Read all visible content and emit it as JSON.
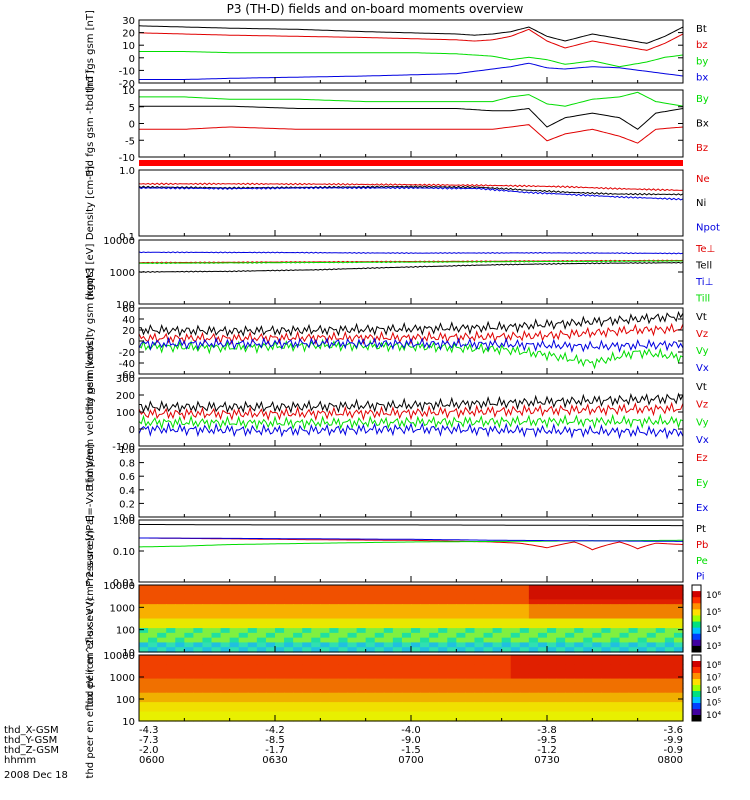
{
  "title": "P3 (TH-D) fields and on-board moments overview",
  "date": "2008 Dec 18",
  "colors": {
    "black": "#000000",
    "red": "#e00000",
    "green": "#00dd00",
    "blue": "#0000e0",
    "bar": "#ff0000"
  },
  "chart_data": [
    {
      "id": "fgs",
      "type": "line",
      "ylabel": "thd fgs gsm [nT]",
      "yticks": [
        "30",
        "20",
        "10",
        "0",
        "-10",
        "-20"
      ],
      "ylim": [
        -22,
        32
      ],
      "series": [
        {
          "name": "Bt",
          "color": "black",
          "x": [
            0,
            10,
            20,
            35,
            50,
            60,
            70,
            74,
            78,
            82,
            86,
            90,
            94,
            100,
            106,
            112,
            116,
            120
          ],
          "y": [
            27,
            26,
            25,
            24,
            22,
            21,
            20,
            19,
            20,
            22,
            26,
            18,
            14,
            20,
            16,
            12,
            18,
            26
          ]
        },
        {
          "name": "bz",
          "color": "red",
          "x": [
            0,
            10,
            20,
            35,
            50,
            60,
            70,
            74,
            78,
            82,
            86,
            90,
            94,
            100,
            106,
            112,
            116,
            120
          ],
          "y": [
            21,
            20,
            19,
            18,
            17,
            16,
            15,
            14,
            15,
            18,
            24,
            14,
            8,
            14,
            10,
            6,
            12,
            20
          ]
        },
        {
          "name": "by",
          "color": "green",
          "x": [
            0,
            10,
            20,
            35,
            50,
            60,
            70,
            74,
            78,
            82,
            86,
            90,
            94,
            100,
            106,
            112,
            116,
            120
          ],
          "y": [
            5,
            5,
            4,
            4,
            4,
            4,
            3,
            2,
            1,
            -2,
            0,
            -2,
            -6,
            -3,
            -8,
            -4,
            0,
            2
          ]
        },
        {
          "name": "bx",
          "color": "blue",
          "x": [
            0,
            10,
            20,
            35,
            50,
            60,
            70,
            74,
            78,
            82,
            86,
            90,
            94,
            100,
            106,
            112,
            116,
            120
          ],
          "y": [
            -19,
            -19,
            -18,
            -17,
            -16,
            -15,
            -14,
            -12,
            -10,
            -8,
            -5,
            -9,
            -10,
            -8,
            -9,
            -12,
            -14,
            -16
          ]
        }
      ]
    },
    {
      "id": "fgs_tbd",
      "type": "line",
      "ylabel": "thd fgs gsm -tbd [nT]",
      "yticks": [
        "10",
        "5",
        "0",
        "-5",
        "-10"
      ],
      "ylim": [
        -14,
        15
      ],
      "series": [
        {
          "name": "By",
          "color": "green",
          "x": [
            0,
            10,
            20,
            35,
            50,
            60,
            70,
            78,
            82,
            86,
            90,
            94,
            100,
            106,
            110,
            114,
            120
          ],
          "y": [
            12,
            12,
            11,
            11,
            10,
            10,
            10,
            10,
            12,
            13,
            9,
            8,
            11,
            12,
            14,
            10,
            8
          ]
        },
        {
          "name": "Bx",
          "color": "black",
          "x": [
            0,
            10,
            20,
            35,
            50,
            60,
            70,
            78,
            82,
            86,
            90,
            94,
            100,
            106,
            110,
            114,
            120
          ],
          "y": [
            8,
            8,
            8,
            7,
            7,
            7,
            7,
            6,
            6,
            7,
            -1,
            3,
            5,
            3,
            -2,
            5,
            7
          ]
        },
        {
          "name": "Bz",
          "color": "red",
          "x": [
            0,
            10,
            20,
            35,
            50,
            60,
            70,
            78,
            82,
            86,
            90,
            94,
            100,
            106,
            110,
            114,
            120
          ],
          "y": [
            -2,
            -2,
            -1,
            -2,
            -2,
            -2,
            -2,
            -2,
            -1,
            0,
            -7,
            -4,
            -2,
            -5,
            -8,
            -2,
            -1
          ]
        }
      ]
    },
    {
      "id": "density",
      "type": "line",
      "ylabel": "Density [cm-3]",
      "log": true,
      "yticks": [
        "1.0",
        "0.1"
      ],
      "ylim": [
        0.1,
        1.5
      ],
      "series": [
        {
          "name": "Ne",
          "color": "red",
          "x": [
            0,
            20,
            40,
            60,
            75,
            85,
            95,
            105,
            120
          ],
          "y": [
            0.85,
            0.85,
            0.84,
            0.82,
            0.8,
            0.78,
            0.75,
            0.7,
            0.65
          ]
        },
        {
          "name": "Ni",
          "color": "black",
          "x": [
            0,
            20,
            40,
            60,
            75,
            85,
            95,
            105,
            120
          ],
          "y": [
            0.75,
            0.72,
            0.74,
            0.76,
            0.74,
            0.66,
            0.6,
            0.56,
            0.55
          ]
        },
        {
          "name": "Npot",
          "color": "blue",
          "x": [
            0,
            20,
            40,
            60,
            75,
            85,
            95,
            105,
            120
          ],
          "y": [
            0.72,
            0.7,
            0.72,
            0.72,
            0.7,
            0.6,
            0.55,
            0.5,
            0.45
          ]
        }
      ]
    },
    {
      "id": "temp",
      "type": "line",
      "ylabel": "mgqt3 [eV]",
      "log": true,
      "yticks": [
        "10000",
        "1000",
        "100"
      ],
      "ylim": [
        100,
        12000
      ],
      "series": [
        {
          "name": "Te⊥",
          "color": "red",
          "x": [
            0,
            30,
            60,
            90,
            120
          ],
          "y": [
            2200,
            2300,
            2400,
            2500,
            2600
          ]
        },
        {
          "name": "Tell",
          "color": "black",
          "x": [
            0,
            20,
            40,
            60,
            80,
            100,
            120
          ],
          "y": [
            1100,
            1150,
            1300,
            1600,
            1900,
            2100,
            2200
          ]
        },
        {
          "name": "Ti⊥",
          "color": "blue",
          "x": [
            0,
            30,
            60,
            90,
            120
          ],
          "y": [
            4800,
            4700,
            4500,
            4600,
            4400
          ]
        },
        {
          "name": "Till",
          "color": "green",
          "x": [
            0,
            30,
            60,
            90,
            120
          ],
          "y": [
            2100,
            2200,
            2300,
            2400,
            2500
          ]
        }
      ]
    },
    {
      "id": "peim_vel",
      "type": "line",
      "ylabel": "thd peim velocity gsm [km/s]",
      "yticks": [
        "60",
        "40",
        "20",
        "0",
        "-20",
        "-40",
        "-60"
      ],
      "ylim": [
        -60,
        60
      ],
      "series": [
        {
          "name": "Vt",
          "color": "black",
          "x": [
            0,
            20,
            40,
            60,
            80,
            90,
            100,
            110,
            120
          ],
          "y": [
            20,
            18,
            20,
            22,
            25,
            30,
            35,
            40,
            45
          ]
        },
        {
          "name": "Vz",
          "color": "red",
          "x": [
            0,
            20,
            40,
            60,
            80,
            90,
            100,
            110,
            120
          ],
          "y": [
            5,
            5,
            6,
            6,
            8,
            10,
            15,
            20,
            22
          ]
        },
        {
          "name": "Vy",
          "color": "green",
          "x": [
            0,
            20,
            40,
            60,
            80,
            90,
            100,
            110,
            120
          ],
          "y": [
            -10,
            -12,
            -8,
            -10,
            -15,
            -25,
            -40,
            -20,
            -30
          ]
        },
        {
          "name": "Vx",
          "color": "blue",
          "x": [
            0,
            20,
            40,
            60,
            80,
            90,
            100,
            110,
            120
          ],
          "y": [
            -5,
            -5,
            -4,
            -5,
            -6,
            -8,
            -10,
            -8,
            -6
          ]
        }
      ]
    },
    {
      "id": "peem_vel",
      "type": "line",
      "ylabel": "thd peem velocity gsm [km/s]",
      "yticks": [
        "300",
        "200",
        "100",
        "0",
        "-100"
      ],
      "ylim": [
        -100,
        300
      ],
      "series": [
        {
          "name": "Vt",
          "color": "black",
          "x": [
            0,
            30,
            60,
            90,
            120
          ],
          "y": [
            130,
            130,
            140,
            160,
            180
          ]
        },
        {
          "name": "Vz",
          "color": "red",
          "x": [
            0,
            30,
            60,
            90,
            120
          ],
          "y": [
            90,
            90,
            95,
            110,
            120
          ]
        },
        {
          "name": "Vy",
          "color": "green",
          "x": [
            0,
            30,
            60,
            90,
            120
          ],
          "y": [
            40,
            35,
            40,
            45,
            45
          ]
        },
        {
          "name": "Vx",
          "color": "blue",
          "x": [
            0,
            30,
            60,
            90,
            120
          ],
          "y": [
            0,
            -10,
            0,
            -10,
            -20
          ]
        }
      ]
    },
    {
      "id": "efield",
      "type": "line",
      "ylabel": "E=-VxB [mV/m]",
      "yticks": [
        "1.0",
        "0.8",
        "0.6",
        "0.4",
        "0.2",
        "0.0"
      ],
      "ylim": [
        0,
        1
      ],
      "series": [
        {
          "name": "Ez",
          "color": "red",
          "x": [],
          "y": []
        },
        {
          "name": "Ey",
          "color": "green",
          "x": [],
          "y": []
        },
        {
          "name": "Ex",
          "color": "blue",
          "x": [],
          "y": []
        }
      ]
    },
    {
      "id": "pressure",
      "type": "line",
      "ylabel": "Pressure [nPa]",
      "log": true,
      "yticks": [
        "1.00",
        "0.10",
        "0.01"
      ],
      "ylim": [
        0.01,
        1.2
      ],
      "series": [
        {
          "name": "Pt",
          "color": "black",
          "x": [
            0,
            30,
            60,
            90,
            120
          ],
          "y": [
            0.85,
            0.82,
            0.82,
            0.8,
            0.78
          ]
        },
        {
          "name": "Pb",
          "color": "red",
          "x": [
            0,
            20,
            40,
            60,
            78,
            84,
            90,
            96,
            100,
            106,
            110,
            114,
            120
          ],
          "y": [
            0.3,
            0.28,
            0.26,
            0.25,
            0.22,
            0.2,
            0.14,
            0.22,
            0.12,
            0.22,
            0.13,
            0.2,
            0.18
          ]
        },
        {
          "name": "Pe",
          "color": "green",
          "x": [
            0,
            10,
            20,
            40,
            60,
            80,
            100,
            120
          ],
          "y": [
            0.15,
            0.16,
            0.18,
            0.2,
            0.22,
            0.23,
            0.24,
            0.25
          ]
        },
        {
          "name": "Pi",
          "color": "blue",
          "x": [
            0,
            20,
            40,
            60,
            80,
            100,
            120
          ],
          "y": [
            0.3,
            0.29,
            0.28,
            0.27,
            0.25,
            0.24,
            0.23
          ]
        }
      ]
    },
    {
      "id": "peir",
      "type": "heatmap",
      "ylabel": "thd peir en eflux eV (cm^2-s-sr-eV)",
      "yticks": [
        "10000",
        "1000",
        "100",
        "10"
      ],
      "cbticks": [
        "10⁶",
        "10⁵",
        "10⁴",
        "10³"
      ]
    },
    {
      "id": "peer",
      "type": "heatmap",
      "ylabel": "thd peer en eflux eV (cm^2-s-sr-eV)",
      "yticks": [
        "10000",
        "1000",
        "100",
        "10"
      ],
      "cbticks": [
        "10⁸",
        "10⁷",
        "10⁶",
        "10⁵",
        "10⁴"
      ]
    }
  ],
  "xaxis": {
    "rows": [
      {
        "label": "thd_X-GSM",
        "values": [
          "-4.3",
          "-4.2",
          "-4.0",
          "-3.8",
          "-3.6"
        ]
      },
      {
        "label": "thd_Y-GSM",
        "values": [
          "-7.3",
          "-8.5",
          "-9.0",
          "-9.5",
          "-9.9"
        ]
      },
      {
        "label": "thd_Z-GSM",
        "values": [
          "-2.0",
          "-1.7",
          "-1.5",
          "-1.2",
          "-0.9"
        ]
      },
      {
        "label": "hhmm",
        "values": [
          "0600",
          "0630",
          "0700",
          "0730",
          "0800"
        ]
      }
    ]
  }
}
